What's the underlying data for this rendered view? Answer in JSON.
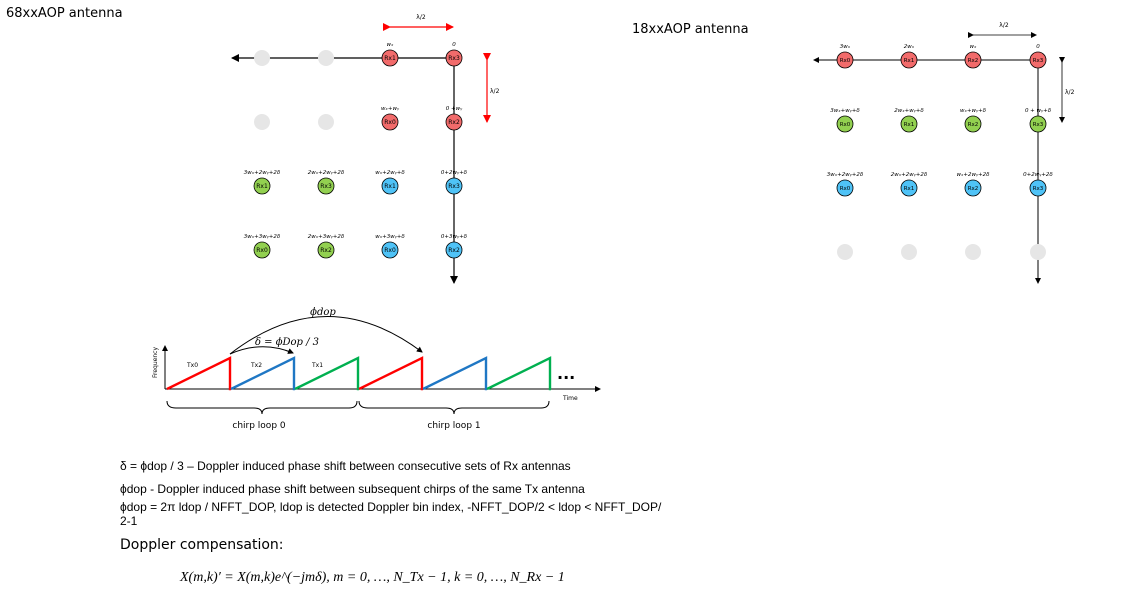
{
  "titles": {
    "left": "68xxAOP antenna",
    "right": "18xxAOP antenna"
  },
  "colors": {
    "rx_red": "#f26b6b",
    "rx_green": "#92d050",
    "rx_blue": "#4fc3f7",
    "placeholder": "#e6e6e6",
    "arrow_red": "#ff0000",
    "tx0": "#ff0000",
    "tx2": "#1f77c4",
    "tx1": "#00b050"
  },
  "left_array": {
    "lambda_h": "λ/2",
    "lambda_v": "λ/2",
    "rows": [
      {
        "cells": [
          {
            "state": "empty"
          },
          {
            "state": "empty"
          },
          {
            "label": "Rx1",
            "phase": "wₓ",
            "color": "red"
          },
          {
            "label": "Rx3",
            "phase": "0",
            "color": "red"
          }
        ]
      },
      {
        "cells": [
          {
            "state": "empty"
          },
          {
            "state": "empty"
          },
          {
            "label": "Rx0",
            "phase": "wₓ+wᵧ",
            "color": "red"
          },
          {
            "label": "Rx2",
            "phase": "0 +wᵧ",
            "color": "red"
          }
        ]
      },
      {
        "cells": [
          {
            "label": "Rx1",
            "phase": "3wₓ+2wᵧ+2δ",
            "color": "green"
          },
          {
            "label": "Rx3",
            "phase": "2wₓ+2wᵧ+2δ",
            "color": "green"
          },
          {
            "label": "Rx1",
            "phase": "wₓ+2wᵧ+δ",
            "color": "blue"
          },
          {
            "label": "Rx3",
            "phase": "0+2wᵧ+δ",
            "color": "blue"
          }
        ]
      },
      {
        "cells": [
          {
            "label": "Rx0",
            "phase": "3wₓ+3wᵧ+2δ",
            "color": "green"
          },
          {
            "label": "Rx2",
            "phase": "2wₓ+3wᵧ+2δ",
            "color": "green"
          },
          {
            "label": "Rx0",
            "phase": "wₓ+3wᵧ+δ",
            "color": "blue"
          },
          {
            "label": "Rx2",
            "phase": "0+3wᵧ+δ",
            "color": "blue"
          }
        ]
      }
    ]
  },
  "right_array": {
    "lambda_h": "λ/2",
    "lambda_v": "λ/2",
    "rows": [
      {
        "cells": [
          {
            "label": "Rx0",
            "phase": "3wₓ",
            "color": "red"
          },
          {
            "label": "Rx1",
            "phase": "2wₓ",
            "color": "red"
          },
          {
            "label": "Rx2",
            "phase": "wₓ",
            "color": "red"
          },
          {
            "label": "Rx3",
            "phase": "0",
            "color": "red"
          }
        ]
      },
      {
        "cells": [
          {
            "label": "Rx0",
            "phase": "3wₓ+wᵧ+δ",
            "color": "green"
          },
          {
            "label": "Rx1",
            "phase": "2wₓ+wᵧ+δ",
            "color": "green"
          },
          {
            "label": "Rx2",
            "phase": "wₓ+wᵧ+δ",
            "color": "green"
          },
          {
            "label": "Rx3",
            "phase": "0 + wᵧ+δ",
            "color": "green"
          }
        ]
      },
      {
        "cells": [
          {
            "label": "Rx0",
            "phase": "3wₓ+2wᵧ+2δ",
            "color": "blue"
          },
          {
            "label": "Rx1",
            "phase": "2wₓ+2wᵧ+2δ",
            "color": "blue"
          },
          {
            "label": "Rx2",
            "phase": "wₓ+2wᵧ+2δ",
            "color": "blue"
          },
          {
            "label": "Rx3",
            "phase": "0+2wᵧ+2δ",
            "color": "blue"
          }
        ]
      },
      {
        "cells": [
          {
            "state": "empty"
          },
          {
            "state": "empty"
          },
          {
            "state": "empty"
          },
          {
            "state": "empty"
          }
        ]
      }
    ]
  },
  "chirp": {
    "phi_label": "ϕdop",
    "delta_label": "δ = ϕDop / 3",
    "y_axis": "Frequency",
    "x_axis": "Time",
    "ellipsis": "...",
    "tx_labels": [
      "Tx0",
      "Tx2",
      "Tx1"
    ],
    "ramp_colors": [
      "tx0",
      "tx2",
      "tx1",
      "tx0",
      "tx2",
      "tx1"
    ],
    "loops": [
      "chirp loop 0",
      "chirp loop 1"
    ]
  },
  "text": {
    "line1": "δ = ϕdop / 3 – Doppler induced phase shift between consecutive sets of Rx antennas",
    "line2": "ϕdop - Doppler induced phase shift between subsequent chirps of the same Tx antenna",
    "line3a": "ϕdop = 2π ldop / NFFT_DOP, ldop is detected Doppler bin index, -NFFT_DOP/2 < ldop < NFFT_DOP/",
    "line3b": "2-1",
    "comp_title": "Doppler compensation:",
    "equation": "X(m,k)′ = X(m,k)e^(−jmδ), m = 0, …, N_Tx − 1, k = 0, …, N_Rx − 1"
  }
}
